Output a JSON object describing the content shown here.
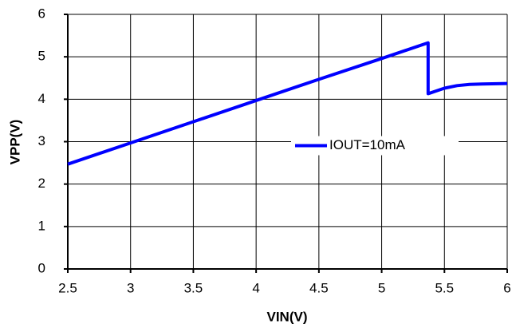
{
  "chart_data": {
    "type": "line",
    "x_label": "VIN(V)",
    "y_label": "VPP(V)",
    "x": [
      2.5,
      3,
      3.5,
      4,
      4.5,
      5,
      5.37,
      5.37,
      5.42,
      5.5,
      5.6,
      5.7,
      5.8,
      6
    ],
    "series": [
      {
        "name": "IOUT=10mA",
        "color": "#0000ff",
        "values": [
          2.47,
          2.97,
          3.47,
          3.97,
          4.47,
          4.96,
          5.33,
          4.13,
          4.18,
          4.26,
          4.32,
          4.35,
          4.36,
          4.37
        ]
      }
    ],
    "xlim": [
      2.5,
      6
    ],
    "xticks": [
      2.5,
      3,
      3.5,
      4,
      4.5,
      5,
      5.5,
      6
    ],
    "ylim": [
      0,
      6
    ],
    "yticks": [
      0,
      1,
      2,
      3,
      4,
      5,
      6
    ],
    "grid": true,
    "legend": "right"
  }
}
